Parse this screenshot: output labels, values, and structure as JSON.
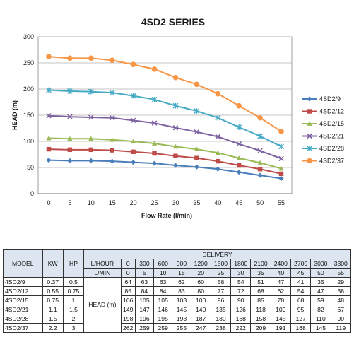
{
  "chart_data": {
    "type": "line",
    "title": "4SD2 SERIES",
    "xlabel": "Flow Rate (l/min)",
    "ylabel": "HEAD (m)",
    "x": [
      0,
      5,
      10,
      15,
      20,
      25,
      30,
      35,
      40,
      45,
      50,
      55
    ],
    "xlim": [
      0,
      55
    ],
    "ylim": [
      0,
      300
    ],
    "yticks": [
      0,
      50,
      100,
      150,
      200,
      250,
      300
    ],
    "grid": true,
    "legend_position": "right",
    "series": [
      {
        "name": "4SD2/9",
        "color": "#4a7ebb",
        "marker": "diamond",
        "values": [
          64,
          63,
          63,
          62,
          60,
          58,
          54,
          51,
          47,
          41,
          35,
          29
        ]
      },
      {
        "name": "4SD2/12",
        "color": "#be4b48",
        "marker": "square",
        "values": [
          85,
          84,
          84,
          83,
          80,
          77,
          72,
          68,
          62,
          54,
          47,
          38
        ]
      },
      {
        "name": "4SD2/15",
        "color": "#98b954",
        "marker": "triangle",
        "values": [
          106,
          105,
          105,
          103,
          100,
          96,
          90,
          85,
          78,
          68,
          59,
          48
        ]
      },
      {
        "name": "4SD2/21",
        "color": "#7d60a0",
        "marker": "x",
        "values": [
          149,
          147,
          146,
          145,
          140,
          135,
          126,
          118,
          109,
          95,
          82,
          67
        ]
      },
      {
        "name": "4SD2/28",
        "color": "#46aac5",
        "marker": "star",
        "values": [
          198,
          196,
          195,
          193,
          187,
          180,
          168,
          158,
          145,
          127,
          110,
          90
        ]
      },
      {
        "name": "4SD2/37",
        "color": "#f79646",
        "marker": "circle",
        "values": [
          262,
          259,
          259,
          255,
          247,
          238,
          222,
          209,
          191,
          168,
          145,
          119
        ]
      }
    ]
  },
  "table": {
    "h_model": "MODEL",
    "h_kw": "KW",
    "h_hp": "HP",
    "h_delivery": "DELIVERY",
    "h_lhour": "L/HOUR",
    "h_lmin": "L/MIN",
    "h_head": "HEAD (m)",
    "lhour": [
      "0",
      "300",
      "600",
      "900",
      "1200",
      "1500",
      "1800",
      "2100",
      "2400",
      "2700",
      "3000",
      "3300"
    ],
    "lmin": [
      "0",
      "5",
      "10",
      "15",
      "20",
      "25",
      "30",
      "35",
      "40",
      "45",
      "50",
      "55"
    ],
    "rows": [
      {
        "model": "4SD2/9",
        "kw": "0.37",
        "hp": "0.5",
        "head": [
          "64",
          "63",
          "63",
          "62",
          "60",
          "58",
          "54",
          "51",
          "47",
          "41",
          "35",
          "29"
        ]
      },
      {
        "model": "4SD2/12",
        "kw": "0.55",
        "hp": "0.75",
        "head": [
          "85",
          "84",
          "84",
          "83",
          "80",
          "77",
          "72",
          "68",
          "62",
          "54",
          "47",
          "38"
        ]
      },
      {
        "model": "4SD2/15",
        "kw": "0.75",
        "hp": "1",
        "head": [
          "106",
          "105",
          "105",
          "103",
          "100",
          "96",
          "90",
          "85",
          "78",
          "68",
          "59",
          "48"
        ]
      },
      {
        "model": "4SD2/21",
        "kw": "1.1",
        "hp": "1.5",
        "head": [
          "149",
          "147",
          "146",
          "145",
          "140",
          "135",
          "126",
          "118",
          "109",
          "95",
          "82",
          "67"
        ]
      },
      {
        "model": "4SD2/28",
        "kw": "1.5",
        "hp": "2",
        "head": [
          "198",
          "196",
          "195",
          "193",
          "187",
          "180",
          "168",
          "158",
          "145",
          "127",
          "110",
          "90"
        ]
      },
      {
        "model": "4SD2/37",
        "kw": "2.2",
        "hp": "3",
        "head": [
          "262",
          "259",
          "259",
          "255",
          "247",
          "238",
          "222",
          "209",
          "191",
          "168",
          "145",
          "119"
        ]
      }
    ]
  }
}
